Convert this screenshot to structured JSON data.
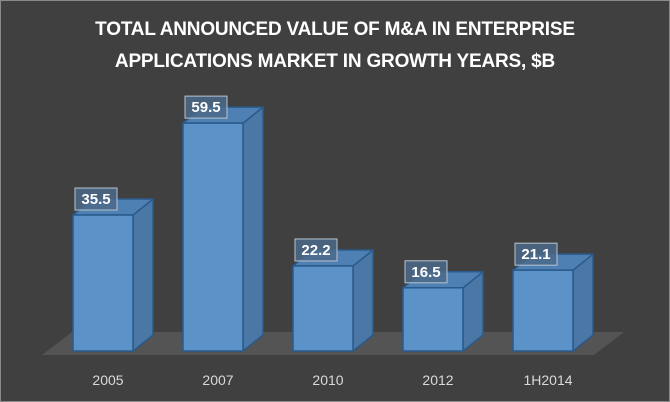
{
  "chart_data": {
    "type": "bar",
    "style": "3d-column",
    "title_lines": [
      "TOTAL ANNOUNCED VALUE OF M&A IN ENTERPRISE",
      "APPLICATIONS MARKET IN GROWTH YEARS, $B"
    ],
    "categories": [
      "2005",
      "2007",
      "2010",
      "2012",
      "1H2014"
    ],
    "values": [
      35.5,
      59.5,
      22.2,
      16.5,
      21.1
    ],
    "data_labels": [
      "35.5",
      "59.5",
      "22.2",
      "16.5",
      "21.1"
    ],
    "xlabel": "",
    "ylabel": "",
    "ylim": [
      0,
      60
    ],
    "grid": false,
    "legend": "none",
    "colors": {
      "background": "#404040",
      "bar_front": "#5b92c8",
      "bar_side": "#4a77a6",
      "bar_top": "#4f80b3",
      "bar_edge": "#2a5a8c",
      "floor": "#555454",
      "title": "#ffffff",
      "tick_label": "#d9d9d9",
      "label_box": "#4b6a8a",
      "label_border": "#b8c4d0"
    }
  }
}
